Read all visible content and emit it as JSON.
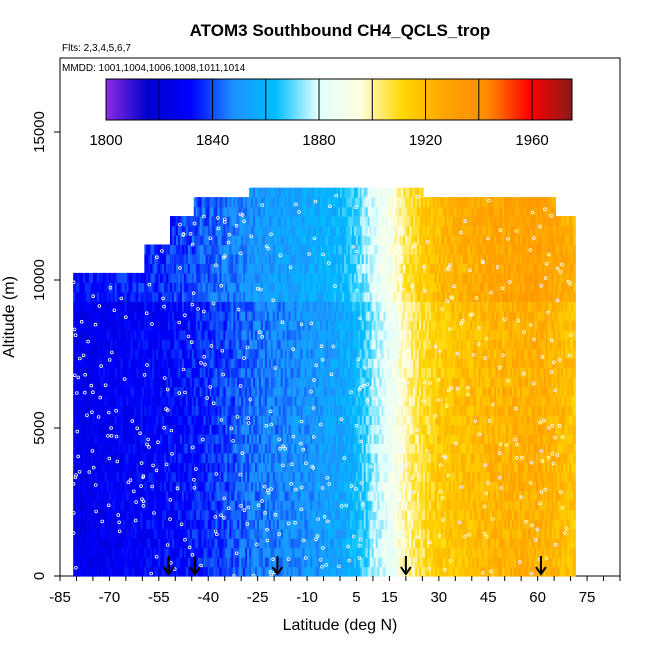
{
  "chart_data": {
    "type": "heatmap",
    "title": "ATOM3 Southbound CH4_QCLS_trop",
    "annotations": [
      "Flts: 2,3,4,5,6,7",
      "MMDD: 1001,1004,1006,1008,1011,1014"
    ],
    "xlabel": "Latitude (deg N)",
    "ylabel": "Altitude (m)",
    "xlim": [
      -85,
      85
    ],
    "ylim": [
      0,
      17500
    ],
    "x_ticks": [
      "-85",
      "-70",
      "-55",
      "-40",
      "-25",
      "-10",
      "5",
      "15",
      "30",
      "45",
      "60",
      "75"
    ],
    "x_tick_values": [
      -85,
      -70,
      -55,
      -40,
      -25,
      -10,
      5,
      15,
      30,
      45,
      60,
      75
    ],
    "y_ticks": [
      "0",
      "5000",
      "10000",
      "15000"
    ],
    "y_tick_values": [
      0,
      5000,
      10000,
      15000
    ],
    "colorbar": {
      "range": [
        1800,
        1975
      ],
      "ticks": [
        "1800",
        "1840",
        "1880",
        "1920",
        "1960"
      ],
      "tick_values": [
        1800,
        1840,
        1880,
        1920,
        1960
      ],
      "colors": [
        "#8a2be2",
        "#0000cd",
        "#0000ff",
        "#1e90ff",
        "#00bfff",
        "#e0ffff",
        "#ffffe0",
        "#ffd700",
        "#ffa500",
        "#ff8c00",
        "#ff0000",
        "#8b1a1a"
      ]
    },
    "arrows_latitude": [
      -52,
      -44,
      -19,
      20,
      61
    ],
    "profile_lat_samples": [
      -80,
      -70,
      -55,
      -40,
      -25,
      -10,
      0,
      5,
      10,
      15,
      20,
      30,
      45,
      60,
      70
    ],
    "profile_ch4_samples": [
      1825,
      1828,
      1830,
      1836,
      1845,
      1850,
      1855,
      1862,
      1875,
      1885,
      1900,
      1915,
      1922,
      1925,
      1918
    ],
    "coverage": {
      "lat_start": -81,
      "lat_end": 71,
      "top_altitude": 12900
    }
  }
}
